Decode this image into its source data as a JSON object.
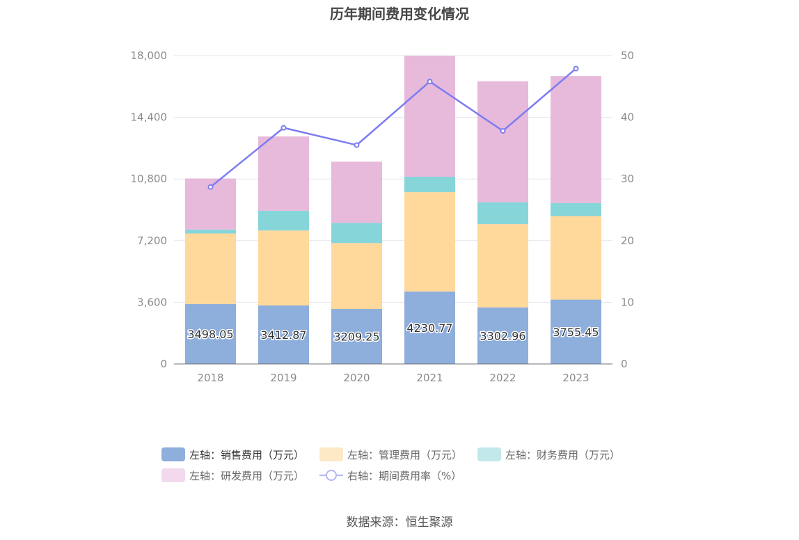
{
  "title": "历年期间费用变化情况",
  "source": "数据来源：恒生聚源",
  "legend": [
    {
      "label": "左轴：销售费用（万元）",
      "color": "#8eaedc",
      "kind": "bar",
      "active": true
    },
    {
      "label": "左轴：管理费用（万元）",
      "color": "#fde9c6",
      "kind": "bar",
      "active": false
    },
    {
      "label": "左轴：财务费用（万元）",
      "color": "#c3e8ea",
      "kind": "bar",
      "active": false
    },
    {
      "label": "左轴：研发费用（万元）",
      "color": "#f2d9ec",
      "kind": "bar",
      "active": false
    },
    {
      "label": "右轴：期间费用率（%）",
      "color": "#b3b7f1",
      "kind": "line",
      "active": false
    }
  ],
  "chart_data": {
    "type": "bar",
    "stacked": true,
    "categories": [
      "2018",
      "2019",
      "2020",
      "2021",
      "2022",
      "2023"
    ],
    "series": [
      {
        "name": "左轴：销售费用（万元）",
        "axis": "left",
        "color": "#8eaedc",
        "values": [
          3498.05,
          3412.87,
          3209.25,
          4230.77,
          3302.96,
          3755.45
        ],
        "labels": [
          "3498.05",
          "3412.87",
          "3209.25",
          "4230.77",
          "3302.96",
          "3755.45"
        ]
      },
      {
        "name": "左轴：管理费用（万元）",
        "axis": "left",
        "color": "#ffd89b",
        "values": [
          4120,
          4380,
          3850,
          5800,
          4860,
          4880
        ]
      },
      {
        "name": "左轴：财务费用（万元）",
        "axis": "left",
        "color": "#86d5d9",
        "values": [
          230,
          1150,
          1180,
          900,
          1280,
          760
        ]
      },
      {
        "name": "左轴：研发费用（万元）",
        "axis": "left",
        "color": "#e7b9db",
        "values": [
          2980,
          4340,
          3570,
          7070,
          7060,
          7420
        ]
      },
      {
        "name": "右轴：期间费用率（%）",
        "axis": "right",
        "type": "line",
        "color": "#7d7cf0",
        "values": [
          28.7,
          38.3,
          35.5,
          45.8,
          37.8,
          47.9
        ]
      }
    ],
    "left_axis": {
      "ticks": [
        "0",
        "3,600",
        "7,200",
        "10,800",
        "14,400",
        "18,000"
      ],
      "ylim": [
        0,
        18000
      ]
    },
    "right_axis": {
      "ticks": [
        "0",
        "10",
        "20",
        "30",
        "40",
        "50"
      ],
      "ylim": [
        0,
        50
      ]
    },
    "grid": true
  }
}
